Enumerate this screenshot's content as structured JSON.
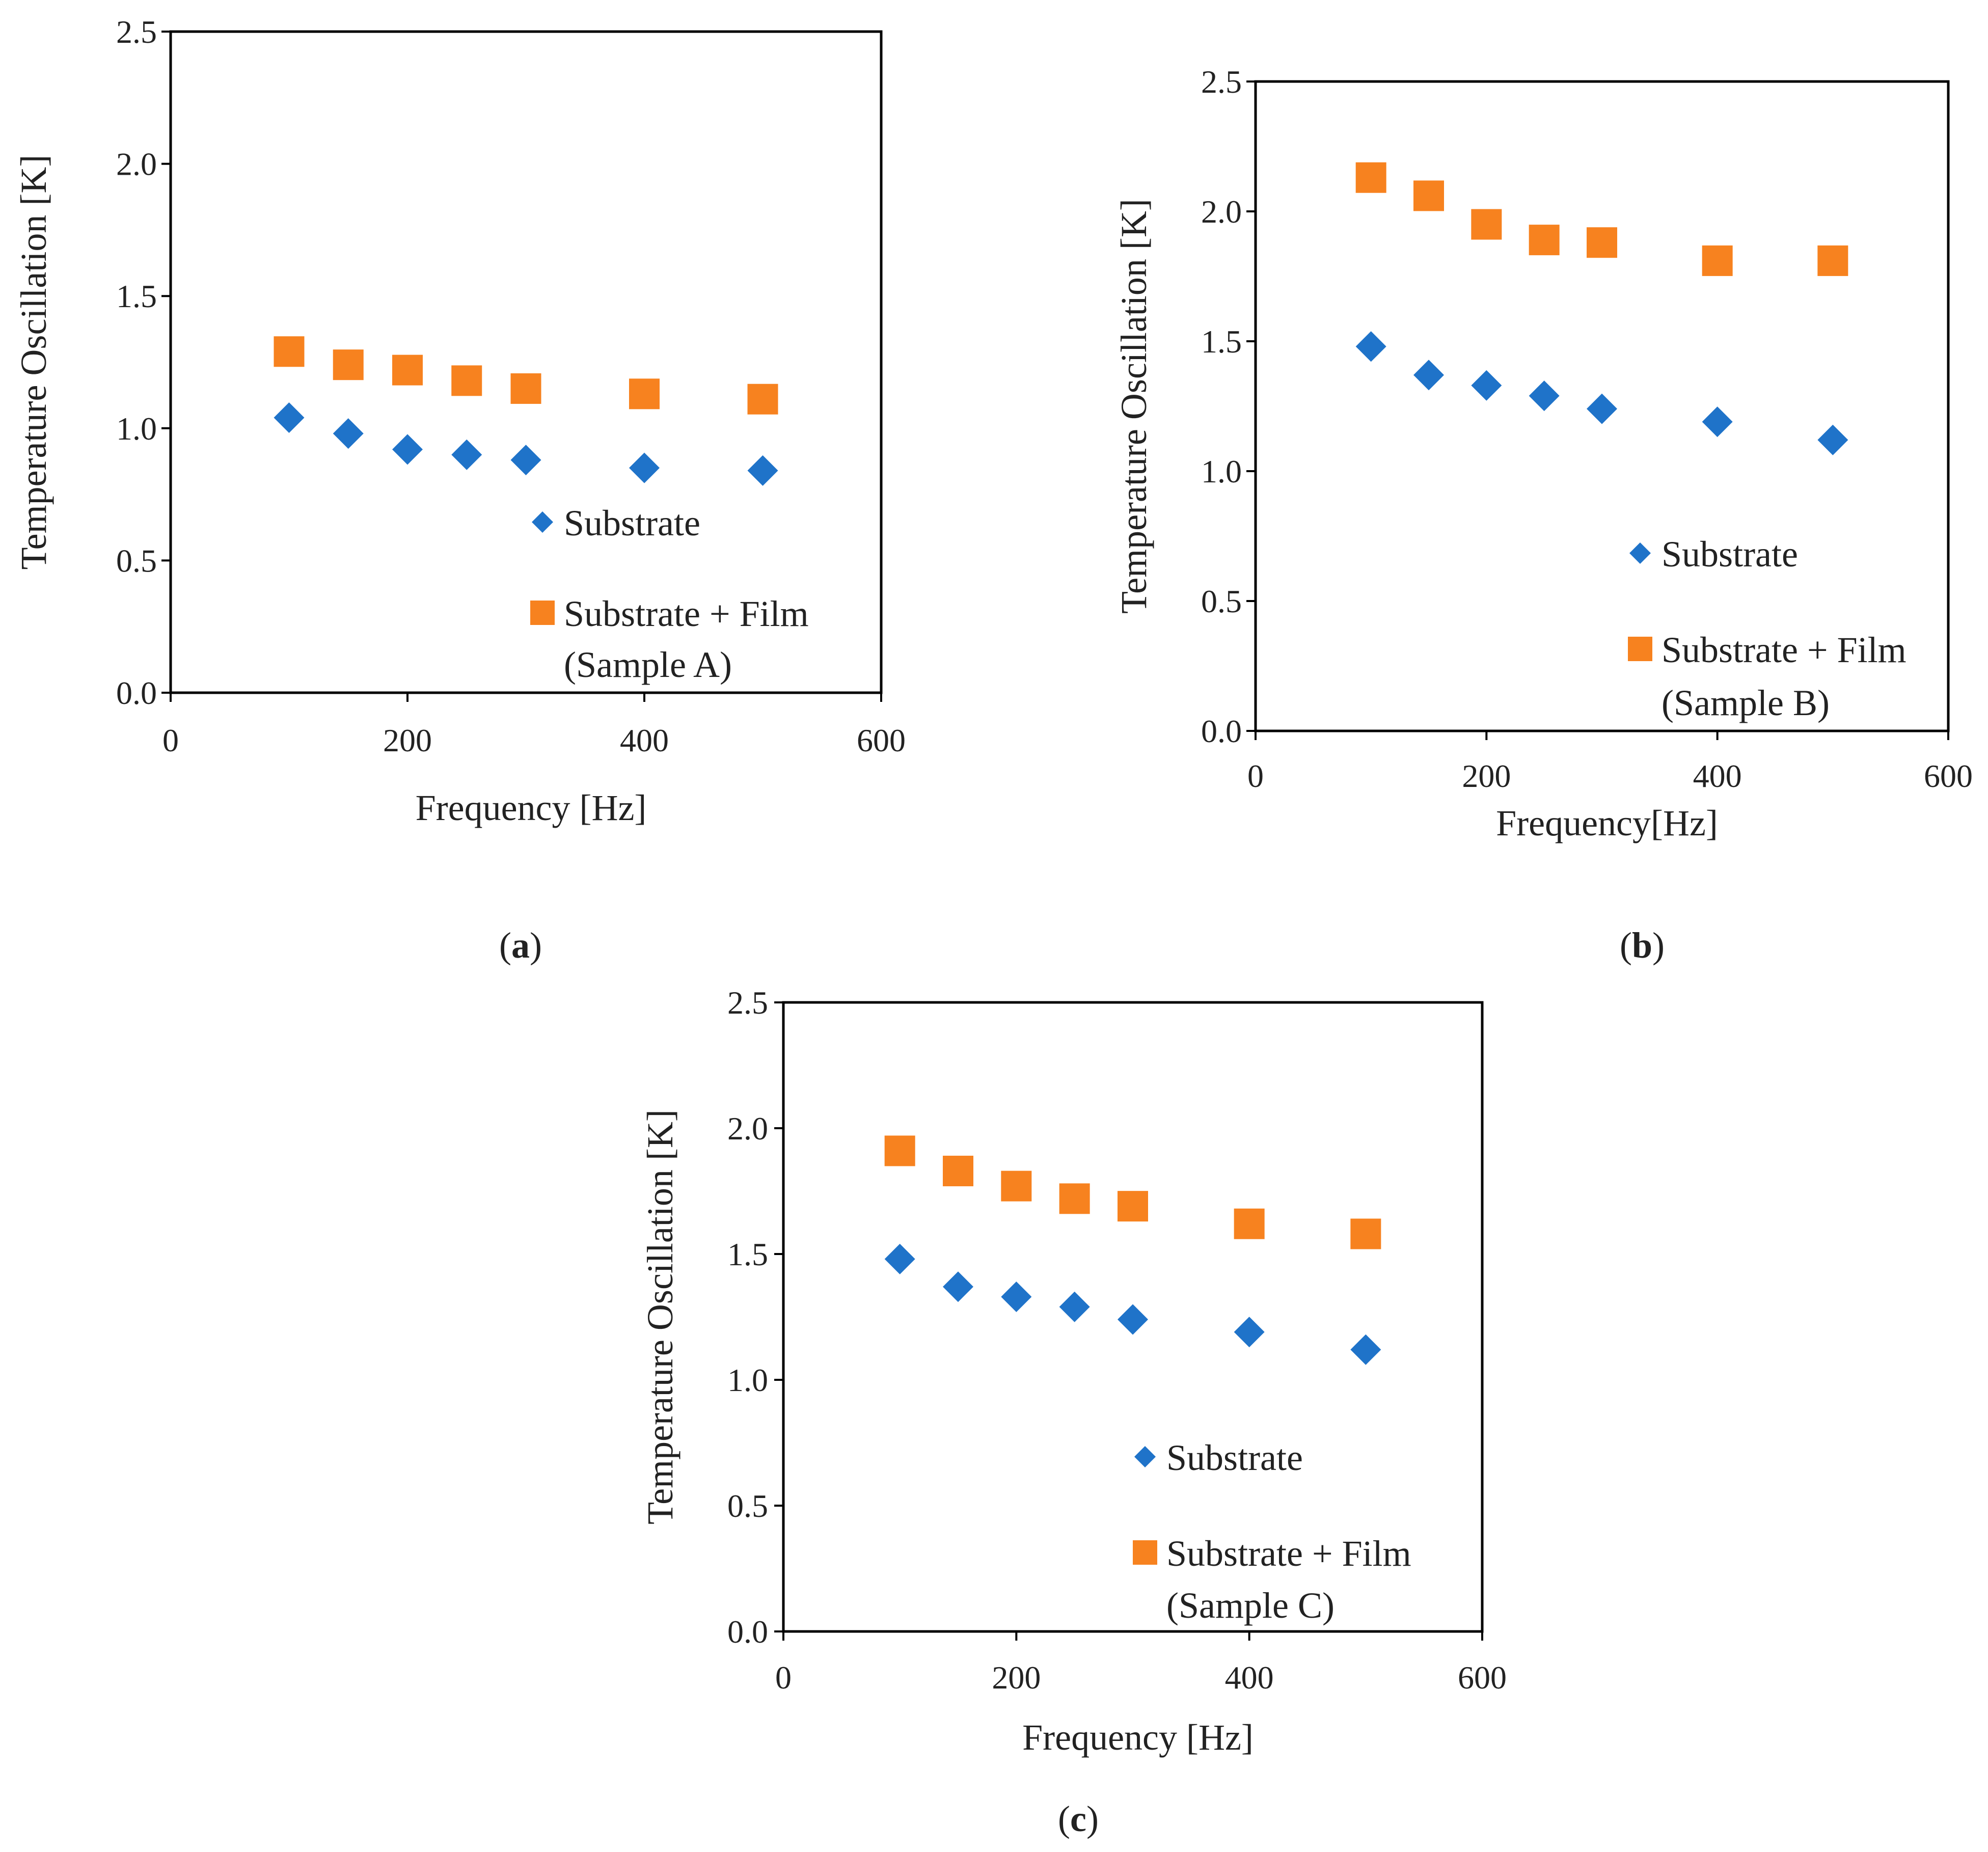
{
  "colors": {
    "substrate": "#1f73c9",
    "film": "#f7821f",
    "axis": "#000000",
    "text": "#222222"
  },
  "chart_data": [
    {
      "type": "scatter",
      "caption_open": "(",
      "caption_letter": "a",
      "caption_close": ")",
      "xlabel": "Frequency [Hz]",
      "ylabel": "Temperature Oscillation [K]",
      "xlim": [
        0,
        600
      ],
      "ylim": [
        0,
        2.5
      ],
      "xticks": [
        "0",
        "200",
        "400",
        "600"
      ],
      "yticks": [
        "0.0",
        "0.5",
        "1.0",
        "1.5",
        "2.0",
        "2.5"
      ],
      "legend_position": "bottom-right",
      "series": [
        {
          "name": "Substrate",
          "marker": "diamond",
          "x": [
            100,
            150,
            200,
            250,
            300,
            400,
            500
          ],
          "y": [
            1.04,
            0.98,
            0.92,
            0.9,
            0.88,
            0.85,
            0.84
          ]
        },
        {
          "name": "Substrate + Film",
          "name_line2": "(Sample A)",
          "marker": "square",
          "x": [
            100,
            150,
            200,
            250,
            300,
            400,
            500
          ],
          "y": [
            1.29,
            1.24,
            1.22,
            1.18,
            1.15,
            1.13,
            1.11
          ]
        }
      ]
    },
    {
      "type": "scatter",
      "caption_open": "(",
      "caption_letter": "b",
      "caption_close": ")",
      "xlabel": "Frequency[Hz]",
      "ylabel": "Temperature Oscillation [K]",
      "xlim": [
        0,
        600
      ],
      "ylim": [
        0,
        2.5
      ],
      "xticks": [
        "0",
        "200",
        "400",
        "600"
      ],
      "yticks": [
        "0.0",
        "0.5",
        "1.0",
        "1.5",
        "2.0",
        "2.5"
      ],
      "legend_position": "bottom-right",
      "series": [
        {
          "name": "Substrate",
          "marker": "diamond",
          "x": [
            100,
            150,
            200,
            250,
            300,
            400,
            500
          ],
          "y": [
            1.48,
            1.37,
            1.33,
            1.29,
            1.24,
            1.19,
            1.12
          ]
        },
        {
          "name": "Substrate + Film",
          "name_line2": "(Sample B)",
          "marker": "square",
          "x": [
            100,
            150,
            200,
            250,
            300,
            400,
            500
          ],
          "y": [
            2.13,
            2.06,
            1.95,
            1.89,
            1.88,
            1.81,
            1.81
          ]
        }
      ]
    },
    {
      "type": "scatter",
      "caption_open": "(",
      "caption_letter": "c",
      "caption_close": ")",
      "xlabel": "Frequency [Hz]",
      "ylabel": "Temperature Oscillation [K]",
      "xlim": [
        0,
        600
      ],
      "ylim": [
        0,
        2.5
      ],
      "xticks": [
        "0",
        "200",
        "400",
        "600"
      ],
      "yticks": [
        "0.0",
        "0.5",
        "1.0",
        "1.5",
        "2.0",
        "2.5"
      ],
      "legend_position": "bottom-right",
      "series": [
        {
          "name": "Substrate",
          "marker": "diamond",
          "x": [
            100,
            150,
            200,
            250,
            300,
            400,
            500
          ],
          "y": [
            1.48,
            1.37,
            1.33,
            1.29,
            1.24,
            1.19,
            1.12
          ]
        },
        {
          "name": "Substrate + Film",
          "name_line2": "(Sample C)",
          "marker": "square",
          "x": [
            100,
            150,
            200,
            250,
            300,
            400,
            500
          ],
          "y": [
            1.91,
            1.83,
            1.77,
            1.72,
            1.69,
            1.62,
            1.58
          ]
        }
      ]
    }
  ]
}
